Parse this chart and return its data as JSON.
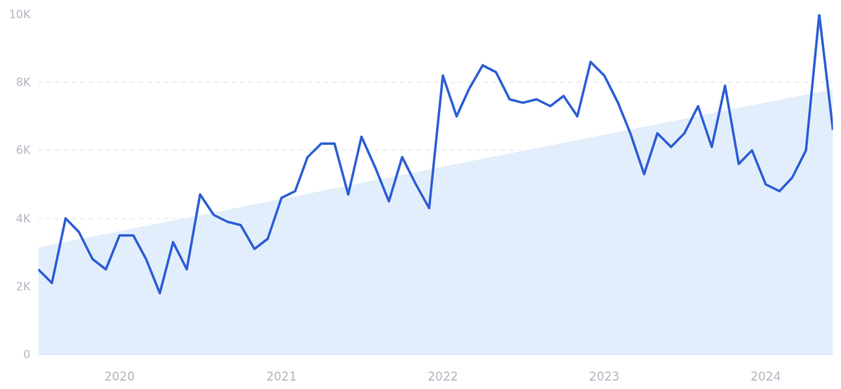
{
  "chart_data": {
    "type": "line",
    "x": [
      "2019-07",
      "2019-08",
      "2019-09",
      "2019-10",
      "2019-11",
      "2019-12",
      "2020-01",
      "2020-02",
      "2020-03",
      "2020-04",
      "2020-05",
      "2020-06",
      "2020-07",
      "2020-08",
      "2020-09",
      "2020-10",
      "2020-11",
      "2020-12",
      "2021-01",
      "2021-02",
      "2021-03",
      "2021-04",
      "2021-05",
      "2021-06",
      "2021-07",
      "2021-08",
      "2021-09",
      "2021-10",
      "2021-11",
      "2021-12",
      "2022-01",
      "2022-02",
      "2022-03",
      "2022-04",
      "2022-05",
      "2022-06",
      "2022-07",
      "2022-08",
      "2022-09",
      "2022-10",
      "2022-11",
      "2022-12",
      "2023-01",
      "2023-02",
      "2023-03",
      "2023-04",
      "2023-05",
      "2023-06",
      "2023-07",
      "2023-08",
      "2023-09",
      "2023-10",
      "2023-11",
      "2023-12",
      "2024-01",
      "2024-02",
      "2024-03",
      "2024-04",
      "2024-05",
      "2024-06"
    ],
    "series": [
      {
        "type": "area",
        "color": "#e3eefc",
        "x": [
          "2019-07",
          "2024-06"
        ],
        "values": [
          3150,
          7800
        ]
      },
      {
        "color": "#2f5fd6",
        "values": [
          2500,
          2100,
          4000,
          3600,
          2800,
          2500,
          3500,
          3500,
          2800,
          1800,
          3300,
          2500,
          4700,
          4100,
          3900,
          3800,
          3100,
          3400,
          4600,
          4800,
          5800,
          6200,
          6200,
          4700,
          6400,
          5500,
          4500,
          5800,
          5000,
          4300,
          8200,
          7000,
          7800,
          8500,
          8300,
          7500,
          7400,
          7500,
          7300,
          7600,
          7000,
          8600,
          8200,
          7400,
          6500,
          5300,
          6500,
          6100,
          6500,
          7300,
          6100,
          7900,
          5600,
          6000,
          5000,
          4800,
          5200,
          6000,
          10000,
          6600
        ]
      }
    ],
    "xlim": [
      "2019-07",
      "2024-06"
    ],
    "xticks": [
      {
        "value": "2020",
        "label": "2020"
      },
      {
        "value": "2021",
        "label": "2021"
      },
      {
        "value": "2022",
        "label": "2022"
      },
      {
        "value": "2023",
        "label": "2023"
      },
      {
        "value": "2024",
        "label": "2024"
      }
    ],
    "ylim": [
      0,
      10000
    ],
    "yticks": [
      0,
      {
        "value": 2000,
        "label": "2K"
      },
      {
        "value": 4000,
        "label": "4K"
      },
      {
        "value": 6000,
        "label": "6K"
      },
      {
        "value": 8000,
        "label": "8K"
      },
      {
        "value": 10000,
        "label": "10K"
      }
    ],
    "grid": "y",
    "line_style": "solid",
    "marker": "none"
  }
}
